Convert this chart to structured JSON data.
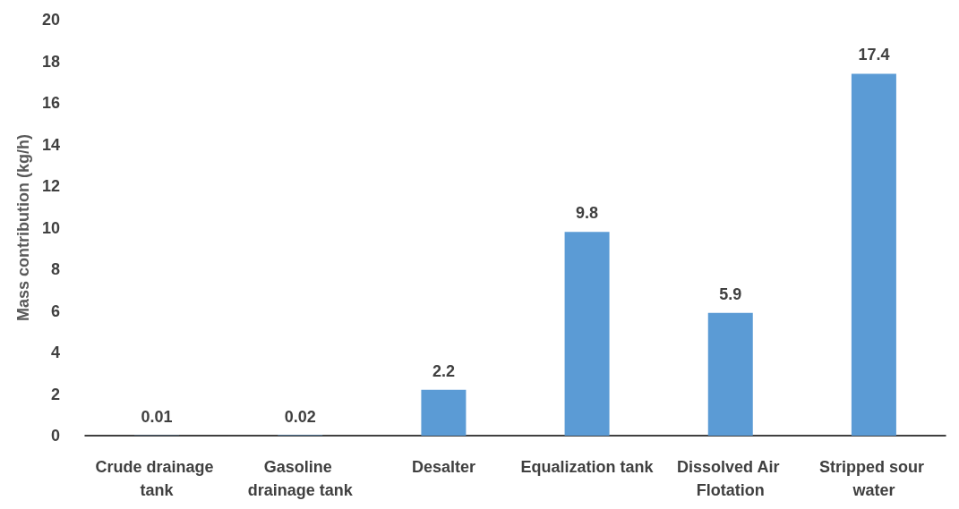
{
  "chart_data": {
    "type": "bar",
    "ylabel": "Mass contribution (kg/h)",
    "categories": [
      "Crude drainage tank",
      "Gasoline drainage tank",
      "Desalter",
      "Equalization tank",
      "Dissolved Air Flotation",
      "Stripped sour water"
    ],
    "values": [
      0.01,
      0.02,
      2.2,
      9.8,
      5.9,
      17.4
    ],
    "color": "#5b9bd5",
    "ylim": [
      0,
      20
    ],
    "yticks": [
      0,
      2,
      4,
      6,
      8,
      10,
      12,
      14,
      16,
      18,
      20
    ],
    "grid": false,
    "data_labels": true
  }
}
